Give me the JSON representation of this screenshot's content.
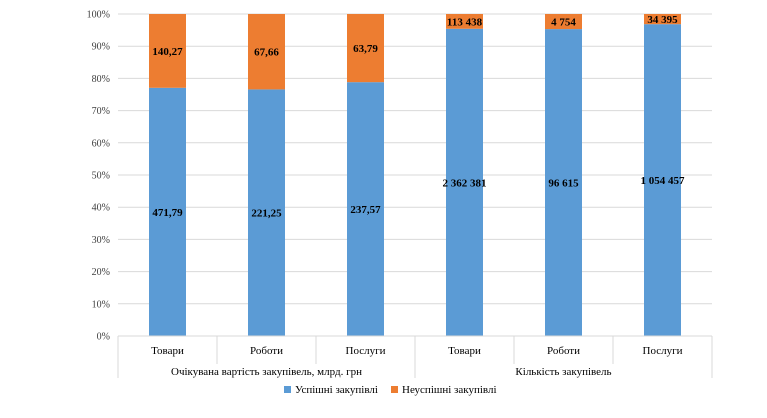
{
  "chart_data": {
    "type": "bar",
    "stacked": "percent",
    "groups": [
      {
        "label": "Очікувана вартість закупівель, млрд. грн",
        "categories": [
          "Товари",
          "Роботи",
          "Послуги"
        ]
      },
      {
        "label": "Кількість закупівель",
        "categories": [
          "Товари",
          "Роботи",
          "Послуги"
        ]
      }
    ],
    "categories": [
      "Товари",
      "Роботи",
      "Послуги",
      "Товари",
      "Роботи",
      "Послуги"
    ],
    "series": [
      {
        "name": "Успішні закупівлі",
        "color": "#5b9bd5",
        "values": [
          471.79,
          221.25,
          237.57,
          2362381,
          96615,
          1054457
        ],
        "labels": [
          "471,79",
          "221,25",
          "237,57",
          "2 362 381",
          "96 615",
          "1 054 457"
        ]
      },
      {
        "name": "Неуспішні закупівлі",
        "color": "#ed7d31",
        "values": [
          140.27,
          67.66,
          63.79,
          113438,
          4754,
          34395
        ],
        "labels": [
          "140,27",
          "67,66",
          "63,79",
          "113 438",
          "4 754",
          "34 395"
        ]
      }
    ],
    "yticks": [
      "0%",
      "10%",
      "20%",
      "30%",
      "40%",
      "50%",
      "60%",
      "70%",
      "80%",
      "90%",
      "100%"
    ],
    "ylim": [
      0,
      100
    ],
    "grid": true,
    "legend_position": "bottom"
  }
}
